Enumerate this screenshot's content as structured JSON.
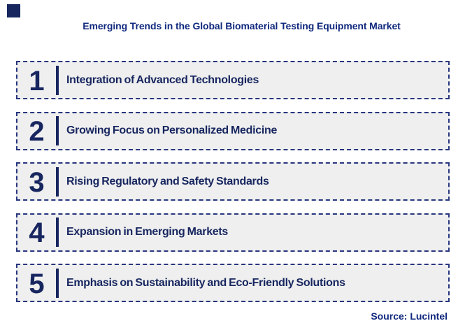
{
  "page": {
    "title": "Emerging Trends in the Global Biomaterial Testing Equipment Market",
    "source": "Source: Lucintel"
  },
  "trends": [
    {
      "number": "1",
      "label": "Integration of Advanced Technologies"
    },
    {
      "number": "2",
      "label": "Growing Focus on Personalized Medicine"
    },
    {
      "number": "3",
      "label": "Rising Regulatory and Safety Standards"
    },
    {
      "number": "4",
      "label": "Expansion in Emerging Markets"
    },
    {
      "number": "5",
      "label": "Emphasis on Sustainability and Eco-Friendly Solutions"
    }
  ],
  "colors": {
    "title_navy": "#10297E",
    "content_navy": "#17265F",
    "border_navy": "#28367E",
    "row_background": "#EFEFEF",
    "page_background": "#FFFFFF"
  }
}
